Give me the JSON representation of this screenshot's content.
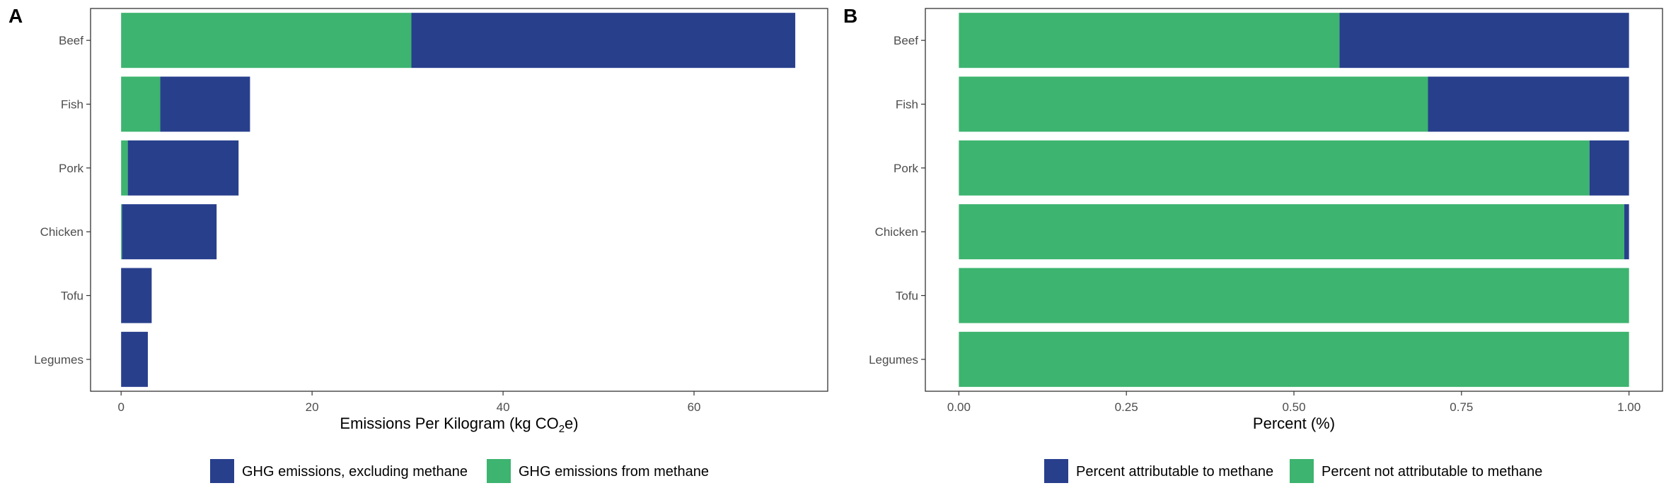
{
  "chart_data": [
    {
      "type": "bar",
      "orientation": "horizontal",
      "stacked": true,
      "panel_tag": "A",
      "categories": [
        "Beef",
        "Fish",
        "Pork",
        "Chicken",
        "Tofu",
        "Legumes"
      ],
      "series": [
        {
          "name": "GHG emissions, excluding methane",
          "color": "#283F8C",
          "values": [
            40.2,
            9.4,
            11.6,
            9.9,
            3.2,
            2.8
          ]
        },
        {
          "name": "GHG emissions from methane",
          "color": "#3DB46F",
          "values": [
            30.4,
            4.1,
            0.7,
            0.1,
            0.0,
            0.0
          ]
        }
      ],
      "xlabel": "Emissions Per Kilogram (kg CO",
      "xlabel_sub": "2",
      "xlabel_suffix": "e)",
      "xlim": [
        -3.2,
        74
      ],
      "xticks": [
        0,
        20,
        40,
        60
      ],
      "xtick_labels": [
        "0",
        "20",
        "40",
        "60"
      ],
      "grid": false,
      "legend_position": "bottom"
    },
    {
      "type": "bar",
      "orientation": "horizontal",
      "stacked": true,
      "panel_tag": "B",
      "categories": [
        "Beef",
        "Fish",
        "Pork",
        "Chicken",
        "Tofu",
        "Legumes"
      ],
      "series": [
        {
          "name": "Percent attributable to methane",
          "color": "#283F8C",
          "values": [
            0.432,
            0.3,
            0.059,
            0.007,
            0.0,
            0.0
          ]
        },
        {
          "name": "Percent not attributable to methane",
          "color": "#3DB46F",
          "values": [
            0.568,
            0.7,
            0.941,
            0.993,
            1.0,
            1.0
          ]
        }
      ],
      "xlabel": "Percent (%)",
      "xlim": [
        -0.05,
        1.05
      ],
      "xticks": [
        0,
        0.25,
        0.5,
        0.75,
        1.0
      ],
      "xtick_labels": [
        "0.00",
        "0.25",
        "0.50",
        "0.75",
        "1.00"
      ],
      "grid": false,
      "legend_position": "bottom"
    }
  ]
}
